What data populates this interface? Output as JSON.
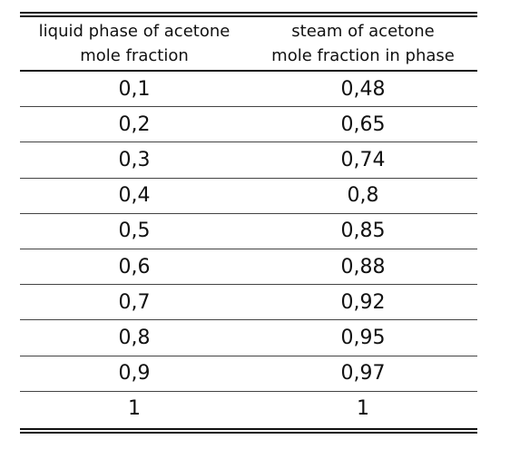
{
  "table": {
    "headers": [
      [
        "liquid phase of acetone",
        "mole fraction"
      ],
      [
        "steam of acetone",
        "mole fraction in phase"
      ]
    ],
    "rows": [
      [
        "0,1",
        "0,48"
      ],
      [
        "0,2",
        "0,65"
      ],
      [
        "0,3",
        "0,74"
      ],
      [
        "0,4",
        "0,8"
      ],
      [
        "0,5",
        "0,85"
      ],
      [
        "0,6",
        "0,88"
      ],
      [
        "0,7",
        "0,92"
      ],
      [
        "0,8",
        "0,95"
      ],
      [
        "0,9",
        "0,97"
      ],
      [
        "1",
        "1"
      ]
    ]
  }
}
